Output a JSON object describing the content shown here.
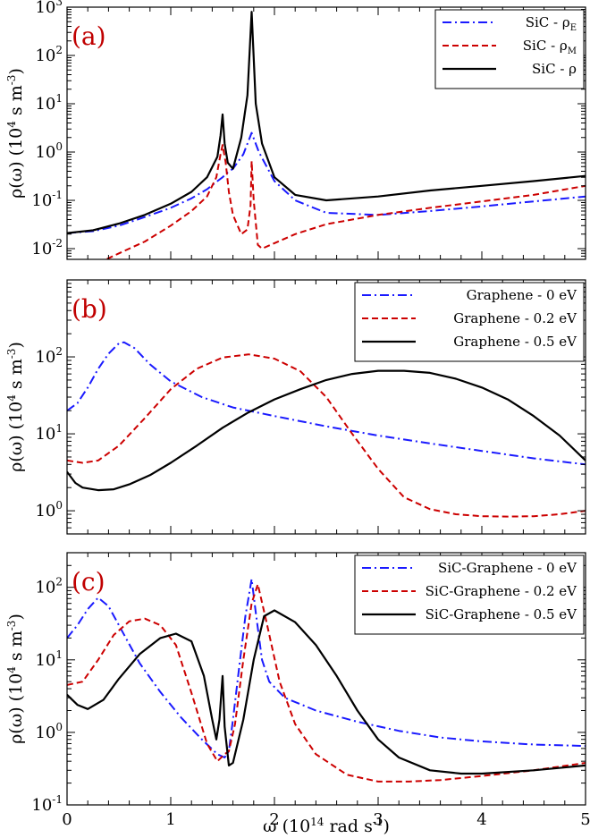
{
  "figure": {
    "xlabel_main": "ω (10",
    "xlabel_sup": "14",
    "xlabel_tail": " rad s",
    "xlabel_sup2": "-1",
    "xlabel_end": ")"
  },
  "chart_data": [
    {
      "type": "line",
      "panel_tag": "(a)",
      "ylabel_main": "ρ(ω) (10",
      "ylabel_sup": "4",
      "ylabel_mid": " s m",
      "ylabel_sup2": "-3",
      "ylabel_end": ")",
      "xlim": [
        0,
        5
      ],
      "ylim": [
        0.006,
        1000
      ],
      "yscale": "log",
      "yticks": [
        0.01,
        0.1,
        1,
        10,
        100,
        1000
      ],
      "ytick_labels": [
        [
          "10",
          "-2"
        ],
        [
          "10",
          "-1"
        ],
        [
          "10",
          "0"
        ],
        [
          "10",
          "1"
        ],
        [
          "10",
          "2"
        ],
        [
          "10",
          "3"
        ]
      ],
      "legend_position": "top-right",
      "series": [
        {
          "name": "SiC - ρ",
          "name_sub": "E",
          "color": "#1a1aff",
          "style": "dashdot",
          "x": [
            0,
            0.25,
            0.5,
            0.75,
            1.0,
            1.2,
            1.35,
            1.45,
            1.5,
            1.55,
            1.6,
            1.7,
            1.78,
            1.85,
            2.0,
            2.2,
            2.5,
            3.0,
            3.5,
            4.0,
            4.5,
            5.0
          ],
          "y": [
            0.021,
            0.023,
            0.03,
            0.045,
            0.07,
            0.11,
            0.17,
            0.25,
            0.3,
            0.38,
            0.45,
            0.9,
            2.5,
            1.0,
            0.25,
            0.1,
            0.055,
            0.05,
            0.06,
            0.075,
            0.095,
            0.12
          ]
        },
        {
          "name": "SiC - ρ",
          "name_sub": "M",
          "color": "#cc0000",
          "style": "dashed",
          "x": [
            0.3,
            0.5,
            0.75,
            1.0,
            1.2,
            1.35,
            1.44,
            1.48,
            1.5,
            1.53,
            1.56,
            1.6,
            1.68,
            1.74,
            1.77,
            1.78,
            1.8,
            1.84,
            1.88,
            2.0,
            2.2,
            2.5,
            3.0,
            3.5,
            4.0,
            4.5,
            5.0
          ],
          "y": [
            0.005,
            0.008,
            0.014,
            0.03,
            0.06,
            0.12,
            0.3,
            0.9,
            1.4,
            0.6,
            0.15,
            0.05,
            0.02,
            0.025,
            0.08,
            0.65,
            0.1,
            0.012,
            0.01,
            0.013,
            0.02,
            0.032,
            0.05,
            0.07,
            0.095,
            0.13,
            0.2
          ]
        },
        {
          "name": "SiC - ρ",
          "name_sub": "",
          "color": "#000000",
          "style": "solid",
          "x": [
            0,
            0.25,
            0.5,
            0.75,
            1.0,
            1.2,
            1.35,
            1.45,
            1.48,
            1.5,
            1.52,
            1.55,
            1.6,
            1.68,
            1.74,
            1.78,
            1.82,
            1.88,
            2.0,
            2.2,
            2.5,
            3.0,
            3.5,
            4.0,
            4.5,
            5.0
          ],
          "y": [
            0.021,
            0.024,
            0.033,
            0.05,
            0.085,
            0.15,
            0.3,
            0.8,
            2.2,
            6,
            1.5,
            0.6,
            0.45,
            2.0,
            15,
            800,
            10,
            1.5,
            0.3,
            0.13,
            0.1,
            0.12,
            0.16,
            0.2,
            0.25,
            0.32
          ]
        }
      ]
    },
    {
      "type": "line",
      "panel_tag": "(b)",
      "ylabel_main": "ρ(ω) (10",
      "ylabel_sup": "4",
      "ylabel_mid": " s m",
      "ylabel_sup2": "-3",
      "ylabel_end": ")",
      "xlim": [
        0,
        5
      ],
      "ylim": [
        0.5,
        1000
      ],
      "yscale": "log",
      "yticks": [
        1,
        10,
        100
      ],
      "ytick_labels": [
        [
          "10",
          "0"
        ],
        [
          "10",
          "1"
        ],
        [
          "10",
          "2"
        ]
      ],
      "legend_position": "top-right",
      "series": [
        {
          "name": "Graphene - 0 eV",
          "color": "#1a1aff",
          "style": "dashdot",
          "x": [
            0,
            0.1,
            0.2,
            0.3,
            0.4,
            0.5,
            0.55,
            0.65,
            0.8,
            1.0,
            1.3,
            1.6,
            2.0,
            2.5,
            3.0,
            3.5,
            4.0,
            4.5,
            5.0
          ],
          "y": [
            20,
            25,
            40,
            70,
            110,
            150,
            155,
            130,
            80,
            48,
            30,
            22,
            17,
            12.5,
            9.5,
            7.5,
            6,
            4.8,
            4
          ]
        },
        {
          "name": "Graphene - 0.2 eV",
          "color": "#cc0000",
          "style": "dashed",
          "x": [
            0,
            0.15,
            0.3,
            0.5,
            0.75,
            1.0,
            1.25,
            1.5,
            1.75,
            2.0,
            2.25,
            2.5,
            2.75,
            3.0,
            3.25,
            3.5,
            3.75,
            4.0,
            4.25,
            4.5,
            4.75,
            5.0
          ],
          "y": [
            4.5,
            4.2,
            4.5,
            7,
            16,
            38,
            70,
            98,
            108,
            95,
            65,
            30,
            10,
            3.5,
            1.5,
            1.05,
            0.9,
            0.85,
            0.84,
            0.85,
            0.9,
            1.0
          ]
        },
        {
          "name": "Graphene - 0.5 eV",
          "color": "#000000",
          "style": "solid",
          "x": [
            0,
            0.08,
            0.15,
            0.3,
            0.45,
            0.6,
            0.8,
            1.0,
            1.25,
            1.5,
            1.75,
            2.0,
            2.25,
            2.5,
            2.75,
            3.0,
            3.25,
            3.5,
            3.75,
            4.0,
            4.25,
            4.5,
            4.75,
            5.0
          ],
          "y": [
            3.2,
            2.3,
            2.0,
            1.85,
            1.9,
            2.2,
            2.9,
            4.2,
            7,
            12,
            19,
            28,
            38,
            50,
            60,
            66,
            66,
            62,
            52,
            40,
            28,
            17,
            9.5,
            4.5
          ]
        }
      ]
    },
    {
      "type": "line",
      "panel_tag": "(c)",
      "ylabel_main": "ρ(ω) (10",
      "ylabel_sup": "4",
      "ylabel_mid": " s m",
      "ylabel_sup2": "-3",
      "ylabel_end": ")",
      "xlim": [
        0,
        5
      ],
      "xticks": [
        0,
        1,
        2,
        3,
        4,
        5
      ],
      "ylim": [
        0.1,
        300
      ],
      "yscale": "log",
      "yticks": [
        0.1,
        1,
        10,
        100
      ],
      "ytick_labels": [
        [
          "10",
          "-1"
        ],
        [
          "10",
          "0"
        ],
        [
          "10",
          "1"
        ],
        [
          "10",
          "2"
        ]
      ],
      "legend_position": "top-right",
      "series": [
        {
          "name": "SiC-Graphene - 0 eV",
          "color": "#1a1aff",
          "style": "dashdot",
          "x": [
            0,
            0.1,
            0.2,
            0.3,
            0.4,
            0.5,
            0.7,
            0.9,
            1.1,
            1.3,
            1.45,
            1.52,
            1.56,
            1.6,
            1.66,
            1.72,
            1.78,
            1.82,
            1.88,
            1.95,
            2.1,
            2.4,
            2.8,
            3.2,
            3.6,
            4.0,
            4.5,
            5.0
          ],
          "y": [
            20,
            30,
            50,
            72,
            55,
            30,
            9,
            3.6,
            1.6,
            0.8,
            0.5,
            0.45,
            0.55,
            1.5,
            8,
            40,
            130,
            45,
            10,
            5,
            3,
            2,
            1.4,
            1.05,
            0.85,
            0.75,
            0.68,
            0.65
          ]
        },
        {
          "name": "SiC-Graphene - 0.2 eV",
          "color": "#cc0000",
          "style": "dashed",
          "x": [
            0,
            0.15,
            0.3,
            0.45,
            0.6,
            0.75,
            0.9,
            1.05,
            1.2,
            1.35,
            1.45,
            1.52,
            1.56,
            1.62,
            1.7,
            1.78,
            1.84,
            1.92,
            2.05,
            2.2,
            2.4,
            2.7,
            3.0,
            3.3,
            3.6,
            4.0,
            4.5,
            5.0
          ],
          "y": [
            4.5,
            5,
            10,
            22,
            34,
            37,
            30,
            16,
            3.5,
            0.7,
            0.4,
            0.5,
            0.55,
            1.3,
            10,
            60,
            110,
            35,
            5,
            1.3,
            0.5,
            0.26,
            0.21,
            0.21,
            0.22,
            0.25,
            0.3,
            0.38
          ]
        },
        {
          "name": "SiC-Graphene - 0.5 eV",
          "color": "#000000",
          "style": "solid",
          "x": [
            0,
            0.1,
            0.2,
            0.35,
            0.5,
            0.7,
            0.9,
            1.05,
            1.2,
            1.32,
            1.4,
            1.44,
            1.47,
            1.5,
            1.52,
            1.56,
            1.6,
            1.7,
            1.8,
            1.9,
            2.0,
            2.2,
            2.4,
            2.6,
            2.8,
            3.0,
            3.2,
            3.5,
            3.8,
            4.0,
            4.5,
            5.0
          ],
          "y": [
            3.3,
            2.4,
            2.1,
            2.8,
            5.5,
            12,
            20,
            23,
            18,
            6,
            1.5,
            0.8,
            1.5,
            6,
            1.2,
            0.35,
            0.38,
            1.5,
            10,
            40,
            48,
            33,
            16,
            6,
            2,
            0.8,
            0.45,
            0.3,
            0.27,
            0.27,
            0.3,
            0.35
          ]
        }
      ]
    }
  ]
}
